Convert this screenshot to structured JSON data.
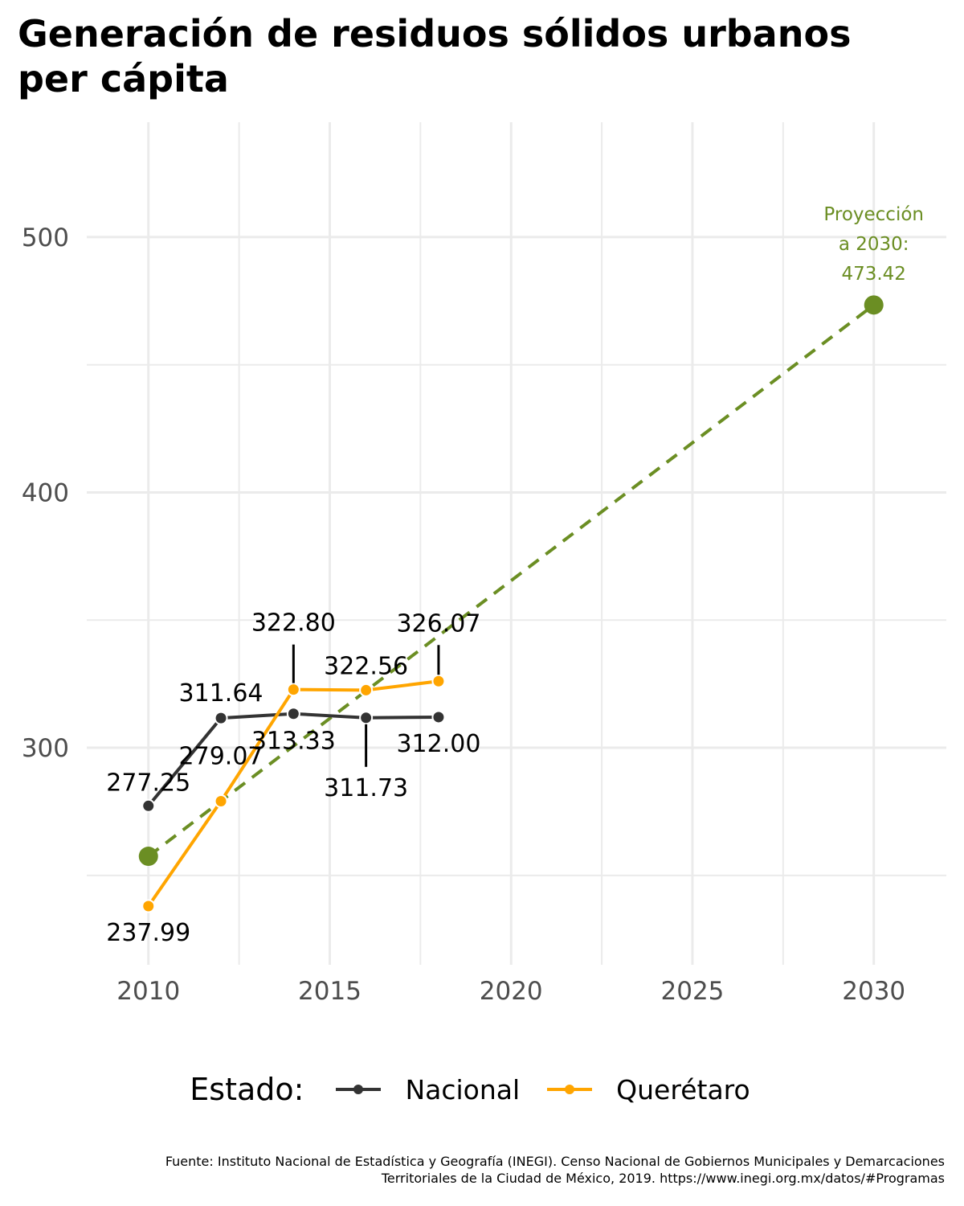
{
  "title": "Generación de residuos sólidos urbanos per cápita",
  "caption": {
    "line1": "Fuente: Instituto Nacional de Estadística y Geografía (INEGI). Censo Nacional de Gobiernos Municipales y Demarcaciones",
    "line2": "Territoriales de la Ciudad de México, 2019. https://www.inegi.org.mx/datos/#Programas"
  },
  "legend": {
    "title": "Estado:",
    "items": [
      {
        "label": "Nacional",
        "color": "#333333"
      },
      {
        "label": "Querétaro",
        "color": "#FFA500"
      }
    ]
  },
  "colors": {
    "nacional": "#333333",
    "queretaro": "#FFA500",
    "projection": "#6B8E23",
    "grid": "#EBEBEB",
    "axis_text": "#4D4D4D"
  },
  "chart_data": {
    "type": "line",
    "title": "Generación de residuos sólidos urbanos per cápita",
    "xlabel": "",
    "ylabel": "",
    "xlim": [
      2008.3,
      2032.0
    ],
    "ylim": [
      215,
      545
    ],
    "x_ticks": [
      2010,
      2015,
      2020,
      2025,
      2030
    ],
    "y_ticks": [
      300,
      400,
      500
    ],
    "grid": true,
    "legend_position": "bottom",
    "series": [
      {
        "name": "Nacional",
        "color": "#333333",
        "x": [
          2010,
          2012,
          2014,
          2016,
          2018
        ],
        "y": [
          277.25,
          311.64,
          313.33,
          311.73,
          312.0
        ],
        "labels": [
          "277.25",
          "311.64",
          "313.33",
          "311.73",
          "312.00"
        ]
      },
      {
        "name": "Querétaro",
        "color": "#FFA500",
        "x": [
          2010,
          2012,
          2014,
          2016,
          2018
        ],
        "y": [
          237.99,
          279.07,
          322.8,
          322.56,
          326.07
        ],
        "labels": [
          "237.99",
          "279.07",
          "322.80",
          "322.56",
          "326.07"
        ]
      }
    ],
    "projection": {
      "color": "#6B8E23",
      "x": [
        2010,
        2030
      ],
      "y": [
        257.5,
        473.42
      ],
      "annotation": [
        "Proyección",
        "a 2030:",
        "473.42"
      ]
    }
  }
}
